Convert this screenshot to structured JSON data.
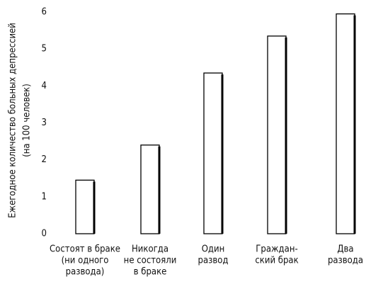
{
  "chart_data": {
    "type": "bar",
    "y_label": [
      "Ежегодное количество больных депрессией",
      "(на 100 человек)"
    ],
    "categories": [
      [
        "Состоят в браке",
        "(ни одного",
        "развода)"
      ],
      [
        "Никогда",
        "не состояли",
        "в браке"
      ],
      [
        "Один",
        "развод"
      ],
      [
        "Граждан-",
        "ский брак"
      ],
      [
        "Два",
        "развода"
      ]
    ],
    "values": [
      1.45,
      2.4,
      4.35,
      5.35,
      5.95
    ],
    "color": "#ffffff",
    "ylim": [
      0,
      6
    ],
    "yticks": [
      0,
      1,
      2,
      3,
      4,
      5,
      6
    ],
    "grid": false
  }
}
